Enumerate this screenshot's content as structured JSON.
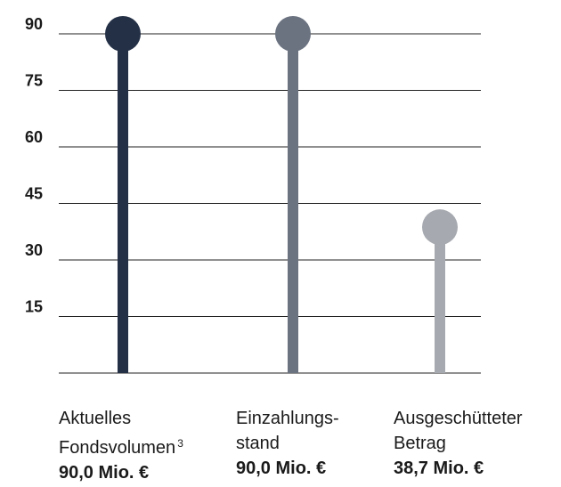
{
  "chart_data": {
    "type": "lollipop",
    "ylim": [
      0,
      90
    ],
    "yticks": [
      "15",
      "30",
      "45",
      "60",
      "75",
      "90"
    ],
    "grid": true,
    "categories": [
      {
        "label_line1": "Aktuelles",
        "label_line2": "Fondsvolumen",
        "footnote": "3",
        "value": 90.0,
        "value_label": "90,0 Mio. €",
        "color": "#243046"
      },
      {
        "label_line1": "Einzahlungs-",
        "label_line2": "stand",
        "footnote": "",
        "value": 90.0,
        "value_label": "90,0 Mio. €",
        "color": "#6b7280"
      },
      {
        "label_line1": "Ausgeschütteter",
        "label_line2": "Betrag",
        "footnote": "",
        "value": 38.7,
        "value_label": "38,7 Mio. €",
        "color": "#a6aab0"
      }
    ]
  }
}
